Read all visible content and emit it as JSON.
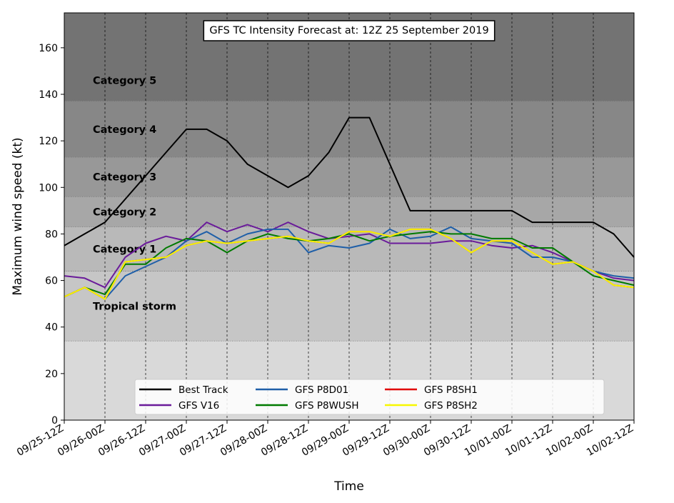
{
  "chart_data": {
    "type": "line",
    "title": "GFS TC Intensity Forecast at: 12Z 25 September 2019",
    "xlabel": "Time",
    "ylabel": "Maximum wind speed (kt)",
    "ylim": [
      0,
      175
    ],
    "yticks": [
      0,
      20,
      40,
      60,
      80,
      100,
      120,
      140,
      160
    ],
    "xticks": [
      "09/25-12Z",
      "09/26-00Z",
      "09/26-12Z",
      "09/27-00Z",
      "09/27-12Z",
      "09/28-00Z",
      "09/28-12Z",
      "09/29-00Z",
      "09/29-12Z",
      "09/30-00Z",
      "09/30-12Z",
      "10/01-00Z",
      "10/01-12Z",
      "10/02-00Z",
      "10/02-12Z"
    ],
    "x": [
      "09/25-12Z",
      "09/25-18Z",
      "09/26-00Z",
      "09/26-06Z",
      "09/26-12Z",
      "09/26-18Z",
      "09/27-00Z",
      "09/27-06Z",
      "09/27-12Z",
      "09/27-18Z",
      "09/28-00Z",
      "09/28-06Z",
      "09/28-12Z",
      "09/28-18Z",
      "09/29-00Z",
      "09/29-06Z",
      "09/29-12Z",
      "09/29-18Z",
      "09/30-00Z",
      "09/30-06Z",
      "09/30-12Z",
      "09/30-18Z",
      "10/01-00Z",
      "10/01-06Z",
      "10/01-12Z",
      "10/01-18Z",
      "10/02-00Z",
      "10/02-06Z",
      "10/02-12Z"
    ],
    "grid": "vertical dashed at ticks",
    "legend": "lower center, 4 columns",
    "bands": [
      {
        "label": "Tropical storm",
        "from": 34,
        "to": 64,
        "color": "#c6c6c6"
      },
      {
        "label": "Category 1",
        "from": 64,
        "to": 83,
        "color": "#b9b9b9"
      },
      {
        "label": "Category 2",
        "from": 83,
        "to": 96,
        "color": "#a7a7a7"
      },
      {
        "label": "Category 3",
        "from": 96,
        "to": 113,
        "color": "#989898"
      },
      {
        "label": "Category 4",
        "from": 113,
        "to": 137,
        "color": "#878787"
      },
      {
        "label": "Category 5",
        "from": 137,
        "to": 175,
        "color": "#737373"
      }
    ],
    "below_band_color": "#d9d9d9",
    "series": [
      {
        "name": "Best Track",
        "color": "#000000",
        "values": [
          75,
          80,
          85,
          95,
          105,
          115,
          125,
          125,
          120,
          110,
          105,
          100,
          105,
          115,
          130,
          130,
          110,
          90,
          90,
          90,
          90,
          90,
          90,
          85,
          85,
          85,
          85,
          80,
          70
        ]
      },
      {
        "name": "GFS V16",
        "color": "#6a1b9a",
        "values": [
          62,
          61,
          57,
          70,
          76,
          79,
          77,
          85,
          81,
          84,
          81,
          85,
          81,
          78,
          79,
          80,
          76,
          76,
          76,
          77,
          77,
          75,
          74,
          75,
          72,
          68,
          64,
          61,
          60
        ]
      },
      {
        "name": "GFS P8D01",
        "color": "#1f5fa8",
        "values": [
          53,
          57,
          52,
          62,
          66,
          70,
          77,
          81,
          76,
          80,
          82,
          82,
          72,
          75,
          74,
          76,
          82,
          78,
          79,
          83,
          78,
          77,
          76,
          70,
          70,
          68,
          64,
          62,
          61
        ]
      },
      {
        "name": "GFS P8WUSH",
        "color": "#007a00",
        "values": [
          53,
          57,
          54,
          67,
          67,
          74,
          78,
          77,
          72,
          77,
          80,
          78,
          77,
          78,
          80,
          77,
          79,
          80,
          81,
          80,
          80,
          78,
          78,
          74,
          74,
          68,
          62,
          60,
          58
        ]
      },
      {
        "name": "GFS P8SH1",
        "color": "#e00000",
        "values": [
          53,
          57,
          52,
          68,
          69,
          70,
          75,
          77,
          76,
          77,
          78,
          79,
          77,
          76,
          81,
          81,
          79,
          82,
          82,
          78,
          72,
          77,
          77,
          72,
          67,
          68,
          64,
          58,
          57
        ]
      },
      {
        "name": "GFS P8SH2",
        "color": "#f7f700",
        "values": [
          53,
          57,
          52,
          68,
          69,
          70,
          75,
          77,
          76,
          77,
          78,
          79,
          77,
          76,
          81,
          81,
          79,
          82,
          82,
          78,
          72,
          77,
          77,
          72,
          67,
          68,
          64,
          58,
          57
        ]
      }
    ]
  }
}
